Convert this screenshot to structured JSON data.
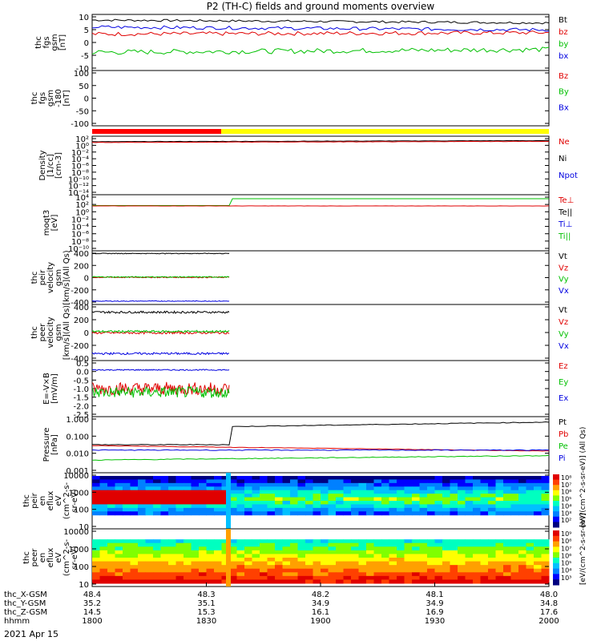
{
  "title": "P2 (TH-C) fields and ground moments overview",
  "date_label": "2021 Apr 15",
  "colors": {
    "black": "#000000",
    "red": "#e00000",
    "green": "#00c000",
    "blue": "#0000e0",
    "yellow": "#ffff00",
    "bar_red": "#ff0000"
  },
  "chart_data": [
    {
      "type": "line",
      "panel": "fgs_gsm",
      "ylabel": [
        "thc",
        "fgs",
        "gsm",
        "[nT]"
      ],
      "yticks": [
        "10",
        "5",
        "0",
        "-5",
        "-10"
      ],
      "ylim": [
        -10,
        10
      ],
      "legend": [
        {
          "name": "Bt",
          "color": "black"
        },
        {
          "name": "bz",
          "color": "red"
        },
        {
          "name": "by",
          "color": "green"
        },
        {
          "name": "bx",
          "color": "blue"
        }
      ],
      "series": [
        {
          "name": "Bt",
          "color": "black",
          "level": 8.0,
          "end": 7.0,
          "noise": 0.4
        },
        {
          "name": "bz",
          "color": "red",
          "level": 3.0,
          "end": 3.5,
          "noise": 0.7
        },
        {
          "name": "by",
          "color": "green",
          "level": -3.5,
          "end": -2.5,
          "noise": 0.9
        },
        {
          "name": "bx",
          "color": "blue",
          "level": 5.5,
          "end": 4.5,
          "noise": 0.6
        }
      ]
    },
    {
      "type": "line",
      "panel": "fgs_gsm_180",
      "ylabel": [
        "thc",
        "fgs",
        "gsm",
        "-180",
        "[nT]"
      ],
      "yticks": [
        "100",
        "50",
        "0",
        "-50",
        "-100"
      ],
      "ylim": [
        -130,
        130
      ],
      "legend": [
        {
          "name": "Bz",
          "color": "red"
        },
        {
          "name": "By",
          "color": "green"
        },
        {
          "name": "Bx",
          "color": "blue"
        }
      ],
      "series": []
    },
    {
      "type": "line",
      "panel": "density",
      "ylabel": [
        "Density",
        "[1/cc]",
        "[cm-3]"
      ],
      "yticks": [
        "10²",
        "10⁰",
        "10⁻²",
        "10⁻⁴",
        "10⁻⁶",
        "10⁻⁸",
        "10⁻¹⁰",
        "10⁻¹²",
        "10⁻¹⁴"
      ],
      "ylim": [
        -14,
        2
      ],
      "log": true,
      "legend": [
        {
          "name": "Ne",
          "color": "red"
        },
        {
          "name": "Ni",
          "color": "black"
        },
        {
          "name": "Npot",
          "color": "blue"
        }
      ],
      "series": [
        {
          "name": "Ni",
          "color": "black",
          "level": 0.5,
          "end": 0.8,
          "noise": 0.05
        },
        {
          "name": "Ne",
          "color": "red",
          "level": 0.3,
          "end": 0.6,
          "noise": 0.05
        }
      ]
    },
    {
      "type": "line",
      "panel": "moqt3",
      "ylabel": [
        "moqt3",
        "[eV]"
      ],
      "yticks": [
        "10⁴",
        "10²",
        "10⁰",
        "10⁻²",
        "10⁻⁴",
        "10⁻⁶",
        "10⁻⁸",
        "10⁻¹⁰"
      ],
      "ylim": [
        -10,
        4
      ],
      "log": true,
      "legend": [
        {
          "name": "Te⊥",
          "color": "red"
        },
        {
          "name": "Te||",
          "color": "black"
        },
        {
          "name": "Ti⊥",
          "color": "blue"
        },
        {
          "name": "Ti||",
          "color": "green"
        }
      ],
      "series": [
        {
          "name": "Ti||",
          "color": "green",
          "level": 1.3,
          "step": 3.0,
          "noise": 0.0
        },
        {
          "name": "Te⊥",
          "color": "red",
          "level": 1.2,
          "end": 1.2,
          "noise": 0.02
        }
      ]
    },
    {
      "type": "line",
      "panel": "peir_velocity",
      "ylabel": [
        "thc",
        "peir",
        "velocity",
        "gsm",
        "[km/s](All Qs)"
      ],
      "yticks": [
        "400",
        "200",
        "0",
        "-200",
        "-400"
      ],
      "ylim": [
        -400,
        400
      ],
      "legend": [
        {
          "name": "Vt",
          "color": "black"
        },
        {
          "name": "Vz",
          "color": "red"
        },
        {
          "name": "Vy",
          "color": "green"
        },
        {
          "name": "Vx",
          "color": "blue"
        }
      ],
      "series": [
        {
          "name": "Vt",
          "color": "black",
          "level": 360,
          "noise": 5
        },
        {
          "name": "Vz",
          "color": "red",
          "level": 5,
          "noise": 8
        },
        {
          "name": "Vy",
          "color": "green",
          "level": 10,
          "noise": 8
        },
        {
          "name": "Vx",
          "color": "blue",
          "level": -350,
          "noise": 5
        }
      ]
    },
    {
      "type": "line",
      "panel": "peer_velocity",
      "ylabel": [
        "thc",
        "peer",
        "velocity",
        "gsm",
        "[km/s](All Qs)"
      ],
      "yticks": [
        "400",
        "200",
        "0",
        "-200",
        "-400"
      ],
      "ylim": [
        -400,
        400
      ],
      "legend": [
        {
          "name": "Vt",
          "color": "black"
        },
        {
          "name": "Vz",
          "color": "red"
        },
        {
          "name": "Vy",
          "color": "green"
        },
        {
          "name": "Vx",
          "color": "blue"
        }
      ],
      "series": [
        {
          "name": "Vt",
          "color": "black",
          "level": 290,
          "noise": 15
        },
        {
          "name": "Vz",
          "color": "red",
          "level": -5,
          "noise": 15
        },
        {
          "name": "Vy",
          "color": "green",
          "level": 15,
          "noise": 15
        },
        {
          "name": "Vx",
          "color": "blue",
          "level": -300,
          "noise": 15
        }
      ]
    },
    {
      "type": "line",
      "panel": "efield",
      "ylabel": [
        "E=-V×B",
        "[mV/m]"
      ],
      "yticks": [
        "0.5",
        "0.0",
        "-0.5",
        "-1.0",
        "-1.5",
        "-2.0",
        "-2.5"
      ],
      "ylim": [
        -2.5,
        0.5
      ],
      "legend": [
        {
          "name": "Ez",
          "color": "red"
        },
        {
          "name": "Ey",
          "color": "green"
        },
        {
          "name": "Ex",
          "color": "blue"
        }
      ],
      "series": [
        {
          "name": "Ex",
          "color": "blue",
          "level": 0.0,
          "noise": 0.03
        },
        {
          "name": "Ez",
          "color": "red",
          "level": -1.0,
          "noise": 0.35
        },
        {
          "name": "Ey",
          "color": "green",
          "level": -1.2,
          "noise": 0.3
        }
      ]
    },
    {
      "type": "line",
      "panel": "pressure",
      "ylabel": [
        "Pressure",
        "[nPa]"
      ],
      "yticks": [
        "1.000",
        "0.100",
        "0.010",
        "0.001"
      ],
      "ylim": [
        -3,
        0.1
      ],
      "log": true,
      "legend": [
        {
          "name": "Pt",
          "color": "black"
        },
        {
          "name": "Pb",
          "color": "red"
        },
        {
          "name": "Pe",
          "color": "green"
        },
        {
          "name": "Pi",
          "color": "blue"
        }
      ],
      "series": [
        {
          "name": "Pt",
          "color": "black",
          "level": -1.45,
          "step": -0.45,
          "end": -0.2,
          "noise": 0.02
        },
        {
          "name": "Pb",
          "color": "red",
          "level": -1.5,
          "end": -1.8,
          "noise": 0.01
        },
        {
          "name": "Pe",
          "color": "green",
          "level": -2.3,
          "end": -2.05,
          "noise": 0.02
        },
        {
          "name": "Pi",
          "color": "blue",
          "level": -1.75,
          "noise": 0.02
        }
      ]
    },
    {
      "type": "heatmap",
      "panel": "peir_spec",
      "ylabel": [
        "thc",
        "peir",
        "en",
        "eflux",
        "eV",
        "(cm^2-s-",
        "sr-eV)"
      ],
      "yticks": [
        "10000",
        "1000",
        "100",
        "10"
      ],
      "ylim": [
        5,
        20000
      ],
      "colorbar_label": "[eV/(cm^2-s-sr-eV)] (All Qs)",
      "colorbar_ticks": [
        "10⁸",
        "10⁷",
        "10⁶",
        "10⁵",
        "10⁴",
        "10³",
        "10²"
      ]
    },
    {
      "type": "heatmap",
      "panel": "peer_spec",
      "ylabel": [
        "thc",
        "peer",
        "en",
        "eflux",
        "eV",
        "(cm^2-s-",
        "sr-eV)"
      ],
      "yticks": [
        "10000",
        "1000",
        "100",
        "10"
      ],
      "ylim": [
        5,
        20000
      ],
      "colorbar_label": "[eV/(cm^2-s-sr-eV)]",
      "colorbar_ticks": [
        "10⁹",
        "10⁸",
        "10⁷",
        "10⁶",
        "10⁵",
        "10⁴",
        "10³"
      ]
    }
  ],
  "x_axis": {
    "rows": [
      {
        "label": "thc_X-GSM",
        "values": [
          "48.4",
          "48.3",
          "48.2",
          "48.1",
          "48.0"
        ]
      },
      {
        "label": "thc_Y-GSM",
        "values": [
          "35.2",
          "35.1",
          "34.9",
          "34.9",
          "34.8"
        ]
      },
      {
        "label": "thc_Z-GSM",
        "values": [
          "14.5",
          "15.3",
          "16.1",
          "16.9",
          "17.6"
        ]
      },
      {
        "label": "hhmm",
        "values": [
          "1800",
          "1830",
          "1900",
          "1930",
          "2000"
        ]
      }
    ]
  }
}
